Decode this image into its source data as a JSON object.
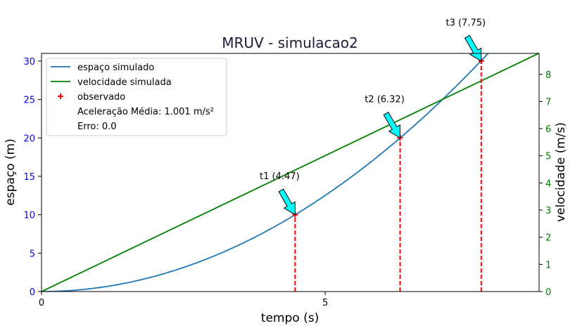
{
  "chart_data": {
    "type": "line",
    "title": "MRUV - simulacao2",
    "xlabel": "tempo (s)",
    "ylabel_left": "espaço (m)",
    "ylabel_right": "velocidade (m/s)",
    "xlim": [
      0,
      8.77
    ],
    "ylim_left": [
      0,
      31
    ],
    "ylim_right": [
      0,
      8.77
    ],
    "x_ticks": [
      0,
      5
    ],
    "y_ticks_left": [
      0,
      5,
      10,
      15,
      20,
      25,
      30
    ],
    "y_ticks_right": [
      0,
      1,
      2,
      3,
      4,
      5,
      6,
      7,
      8
    ],
    "grid": false,
    "legend_location": "upper-left",
    "acceleration": 1.001,
    "series": [
      {
        "name": "espaço simulado",
        "color": "#1f77b4",
        "axis": "left",
        "kind": "curve",
        "formula": "0.5*a*t^2",
        "x_range": [
          0,
          8.77
        ]
      },
      {
        "name": "velocidade simulada",
        "color": "#008000",
        "axis": "right",
        "kind": "line",
        "formula": "a*t",
        "x_range": [
          0,
          8.77
        ]
      },
      {
        "name": "observado",
        "color": "#ff0000",
        "axis": "left",
        "kind": "marker",
        "points": [
          [
            4.47,
            10
          ],
          [
            6.32,
            20
          ],
          [
            7.75,
            30
          ]
        ]
      }
    ],
    "legend_extra": [
      "Aceleração Média: 1.001 m/s²",
      "Erro: 0.0"
    ],
    "annotations": [
      {
        "text": "t1 (4.47)",
        "x": 4.47,
        "y": 10
      },
      {
        "text": "t2 (6.32)",
        "x": 6.32,
        "y": 20
      },
      {
        "text": "t3 (7.75)",
        "x": 7.75,
        "y": 30
      }
    ]
  }
}
